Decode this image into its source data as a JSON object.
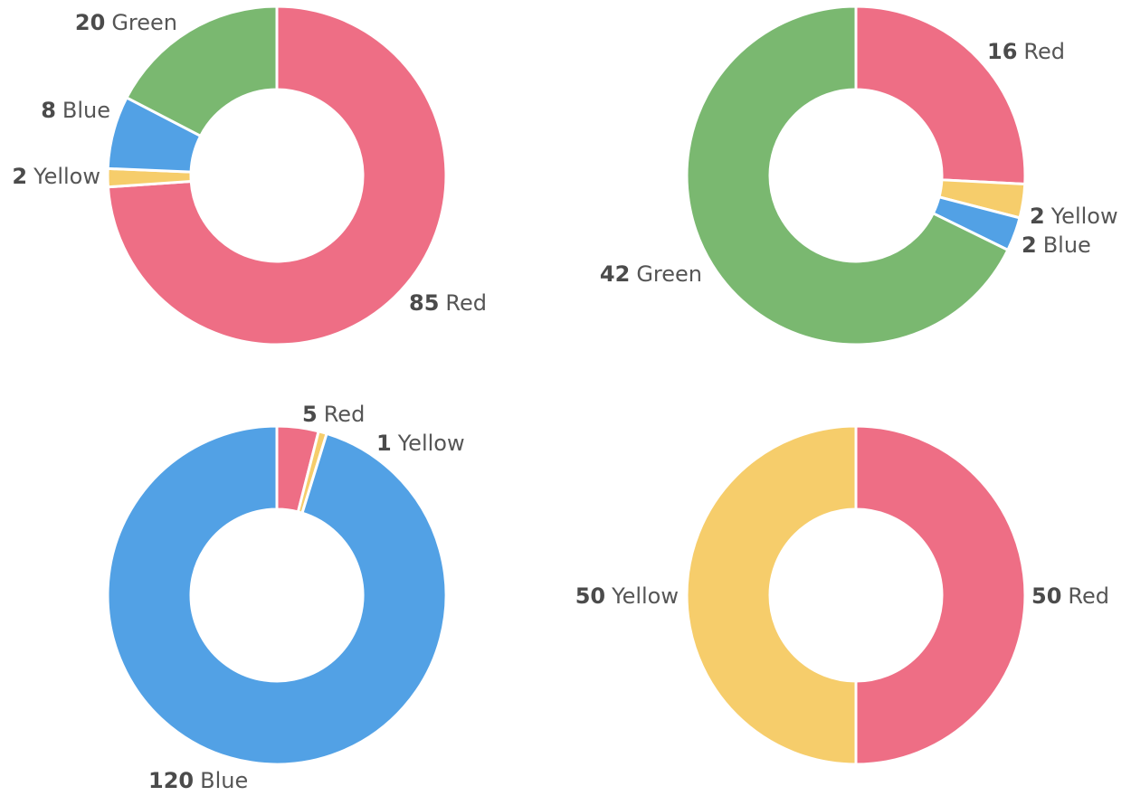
{
  "colors": {
    "Red": "#EE6E85",
    "Green": "#7AB870",
    "Blue": "#52A1E5",
    "Yellow": "#F6CD6B",
    "separator": "#FFFFFF",
    "label_value": "#4B4B4B",
    "label_name": "#555555"
  },
  "chart_data": [
    {
      "type": "pie",
      "donut": true,
      "slices": [
        {
          "label": "Red",
          "value": 85
        },
        {
          "label": "Yellow",
          "value": 2
        },
        {
          "label": "Blue",
          "value": 8
        },
        {
          "label": "Green",
          "value": 20
        }
      ]
    },
    {
      "type": "pie",
      "donut": true,
      "slices": [
        {
          "label": "Red",
          "value": 16
        },
        {
          "label": "Yellow",
          "value": 2
        },
        {
          "label": "Blue",
          "value": 2
        },
        {
          "label": "Green",
          "value": 42
        }
      ]
    },
    {
      "type": "pie",
      "donut": true,
      "slices": [
        {
          "label": "Red",
          "value": 5
        },
        {
          "label": "Yellow",
          "value": 1
        },
        {
          "label": "Blue",
          "value": 120
        }
      ]
    },
    {
      "type": "pie",
      "donut": true,
      "slices": [
        {
          "label": "Red",
          "value": 50
        },
        {
          "label": "Yellow",
          "value": 50
        }
      ]
    }
  ]
}
